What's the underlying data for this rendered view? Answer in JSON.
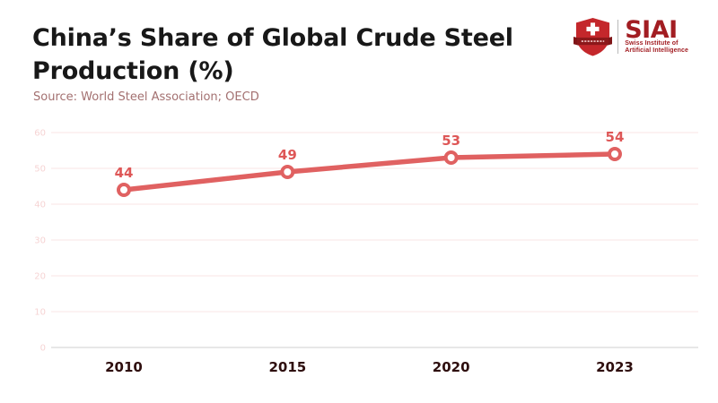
{
  "header": {
    "title_lines": [
      "China’s Share of Global Crude Steel",
      "Production (%)"
    ],
    "source": "Source: World Steel Association; OECD"
  },
  "logo": {
    "acronym": "SIAI",
    "subtitle_lines": [
      "Swiss Institute of",
      "Artificial Intelligence"
    ],
    "brand_color": "#a21d22",
    "shield_color": "#c4272b",
    "ribbon_color": "#7f1517"
  },
  "chart_data": {
    "type": "line",
    "title": "China’s Share of Global Crude Steel Production (%)",
    "categories": [
      "2010",
      "2015",
      "2020",
      "2023"
    ],
    "values": [
      44,
      49,
      53,
      54
    ],
    "xlabel": "",
    "ylabel": "",
    "ylim": [
      0,
      60
    ],
    "yticks": [
      0,
      10,
      20,
      30,
      40,
      50,
      60
    ],
    "grid": true,
    "legend": false,
    "data_labels": true,
    "colors": {
      "line": "#e06161",
      "marker_fill": "#ffffff",
      "marker_stroke": "#e06161",
      "data_label": "#de5757",
      "gridline": "#fae6e6",
      "baseline": "#cfcfcf",
      "ytick_label": "#f6d4d4",
      "xtick_label": "#2e0e0e"
    }
  }
}
